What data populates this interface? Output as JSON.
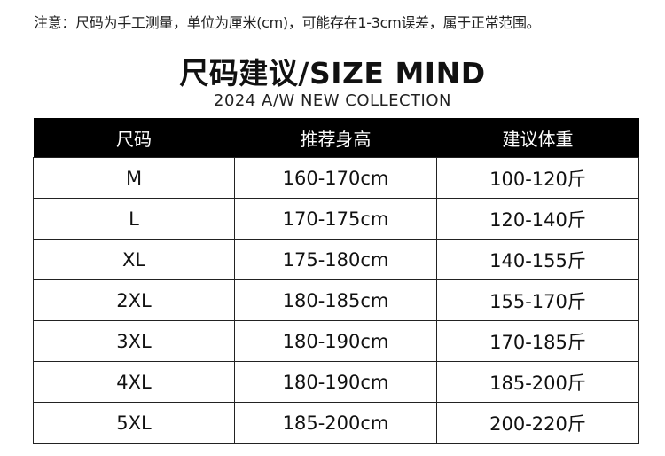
{
  "note": "注意：尺码为手工测量，单位为厘米(cm)，可能存在1-3cm误差，属于正常范围。",
  "title": "尺码建议/SIZE MIND",
  "subtitle": "2024 A/W NEW COLLECTION",
  "table": {
    "headers": [
      "尺码",
      "推荐身高",
      "建议体重"
    ],
    "rows": [
      [
        "M",
        "160-170cm",
        "100-120斤"
      ],
      [
        "L",
        "170-175cm",
        "120-140斤"
      ],
      [
        "XL",
        "175-180cm",
        "140-155斤"
      ],
      [
        "2XL",
        "180-185cm",
        "155-170斤"
      ],
      [
        "3XL",
        "180-190cm",
        "170-185斤"
      ],
      [
        "4XL",
        "180-190cm",
        "185-200斤"
      ],
      [
        "5XL",
        "185-200cm",
        "200-220斤"
      ]
    ]
  }
}
